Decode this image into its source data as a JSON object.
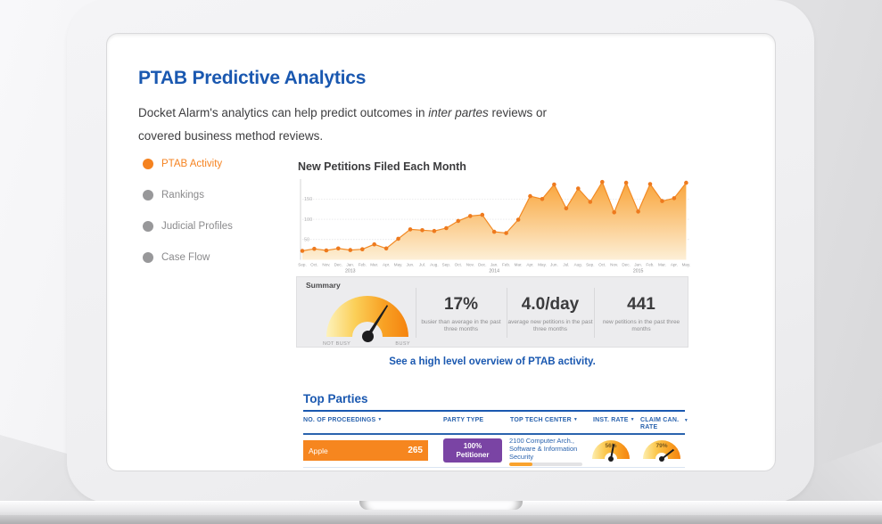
{
  "page": {
    "title": "PTAB Predictive Analytics",
    "subtitle_pre": "Docket Alarm's analytics can help predict outcomes in ",
    "subtitle_italic": "inter partes",
    "subtitle_post": " reviews or covered business method reviews."
  },
  "sidebar": {
    "items": [
      {
        "label": "PTAB Activity",
        "active": true
      },
      {
        "label": "Rankings",
        "active": false
      },
      {
        "label": "Judicial Profiles",
        "active": false
      },
      {
        "label": "Case Flow",
        "active": false
      }
    ]
  },
  "chart_data": {
    "type": "area",
    "title": "New Petitions Filed Each Month",
    "xlabel": "",
    "ylabel": "",
    "x_labels": [
      "Sep.",
      "Oct.",
      "Nov.",
      "Dec.",
      "Jan.",
      "Feb.",
      "Mar.",
      "Apr.",
      "May.",
      "Jun.",
      "Jul.",
      "Aug.",
      "Sep.",
      "Oct.",
      "Nov.",
      "Dec.",
      "Jan.",
      "Feb.",
      "Mar.",
      "Apr.",
      "May.",
      "Jun.",
      "Jul.",
      "Aug.",
      "Sep.",
      "Oct.",
      "Nov.",
      "Dec.",
      "Jan.",
      "Feb.",
      "Mar.",
      "Apr.",
      "May."
    ],
    "year_labels": {
      "4": "2013",
      "16": "2014",
      "28": "2015"
    },
    "start_month": "Sep 2012",
    "values": [
      22,
      27,
      23,
      28,
      24,
      26,
      38,
      28,
      52,
      75,
      73,
      71,
      78,
      96,
      108,
      111,
      69,
      66,
      99,
      157,
      150,
      186,
      127,
      176,
      143,
      192,
      117,
      190,
      119,
      187,
      145,
      152,
      190
    ],
    "y_ticks": [
      150,
      100,
      50
    ],
    "ylim": [
      0,
      200
    ],
    "grid": true,
    "legend": "none",
    "series_color": "#EE7A1E",
    "area_top_color": "#F9A439",
    "area_bottom_color": "#FDF0D8"
  },
  "summary": {
    "label": "Summary",
    "gauge": {
      "left_label": "NOT BUSY",
      "right_label": "BUSY",
      "needle_pct": 68
    },
    "stats": [
      {
        "value": "17%",
        "caption": "busier than average in the past three months"
      },
      {
        "value": "4.0/day",
        "caption": "average new petitions in the past three months"
      },
      {
        "value": "441",
        "caption": "new petitions in the past three months"
      }
    ]
  },
  "overview_link": "See a high level overview of PTAB activity.",
  "top_parties": {
    "title": "Top Parties",
    "sort_icon": "▼",
    "columns": [
      {
        "label": "NO. OF PROCEEDINGS",
        "sortable": true
      },
      {
        "label": "PARTY TYPE",
        "sortable": false
      },
      {
        "label": "TOP TECH CENTER",
        "sortable": true
      },
      {
        "label": "INST. RATE",
        "sortable": true
      },
      {
        "label": "CLAIM CAN. RATE",
        "sortable": true
      }
    ],
    "rows": [
      {
        "name": "Apple",
        "proceedings": "265",
        "party_type_pct": "100%",
        "party_type_label": "Petitioner",
        "tech_center": "2100 Computer Arch., Software & Information Security",
        "tech_progress_pct": 32,
        "inst_rate": "56%",
        "inst_rate_val": 56,
        "claim_can_rate": "79%",
        "claim_can_rate_val": 79
      }
    ]
  },
  "colors": {
    "accent_orange": "#F5821F",
    "brand_blue": "#1A58B0",
    "table_blue": "#2A63AE",
    "badge_purple": "#7A44A4",
    "summary_bg": "#ECECEE"
  }
}
